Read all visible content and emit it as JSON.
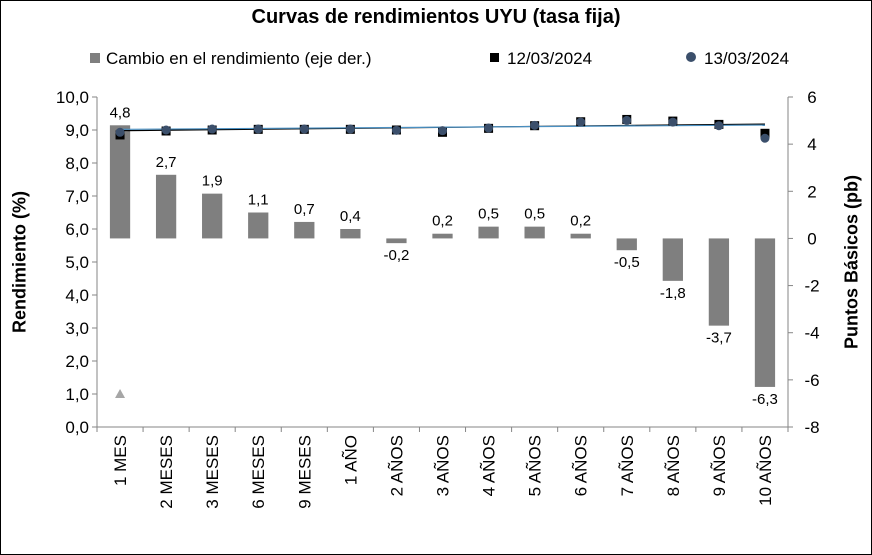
{
  "chart_data": {
    "type": "bar",
    "title": "Curvas de rendimientos UYU (tasa fija)",
    "ylabel": "Rendimiento (%)",
    "y2label": "Puntos Básicos (pb)",
    "ylim": [
      0,
      10
    ],
    "y2lim": [
      -8,
      6
    ],
    "yticks": [
      "0,0",
      "1,0",
      "2,0",
      "3,0",
      "4,0",
      "5,0",
      "6,0",
      "7,0",
      "8,0",
      "9,0",
      "10,0"
    ],
    "y2ticks": [
      "-8",
      "-6",
      "-4",
      "-2",
      "0",
      "2",
      "4",
      "6"
    ],
    "categories": [
      "1 MES",
      "2 MESES",
      "3 MESES",
      "6 MESES",
      "9 MESES",
      "1 AÑO",
      "2 AÑOS",
      "3 AÑOS",
      "4 AÑOS",
      "5 AÑOS",
      "6 AÑOS",
      "7 AÑOS",
      "8 AÑOS",
      "9 AÑOS",
      "10 AÑOS"
    ],
    "series": [
      {
        "name": "Cambio en el rendimiento (eje der.)",
        "type": "bar",
        "axis": "right",
        "color": "#7f7f7f",
        "values": [
          4.8,
          2.7,
          1.9,
          1.1,
          0.7,
          0.4,
          -0.2,
          0.2,
          0.5,
          0.5,
          0.2,
          -0.5,
          -1.8,
          -3.7,
          -6.3
        ],
        "labels": [
          "4,8",
          "2,7",
          "1,9",
          "1,1",
          "0,7",
          "0,4",
          "-0,2",
          "0,2",
          "0,5",
          "0,5",
          "0,2",
          "-0,5",
          "-1,8",
          "-3,7",
          "-6,3"
        ]
      },
      {
        "name": "12/03/2024",
        "type": "scatter",
        "axis": "left",
        "marker": "square",
        "color": "#000000",
        "values": [
          8.85,
          8.97,
          9.0,
          9.02,
          9.02,
          9.02,
          9.0,
          8.93,
          9.05,
          9.13,
          9.25,
          9.32,
          9.27,
          9.17,
          8.9
        ]
      },
      {
        "name": "13/03/2024",
        "type": "scatter",
        "axis": "left",
        "marker": "circle",
        "color": "#3b4f6b",
        "values": [
          8.93,
          9.0,
          9.03,
          9.03,
          9.03,
          9.03,
          8.99,
          8.98,
          9.06,
          9.14,
          9.24,
          9.29,
          9.24,
          9.13,
          8.75
        ]
      }
    ],
    "trendlines": [
      {
        "series": "12/03/2024",
        "color": "#000000",
        "start": 8.98,
        "end": 9.18
      },
      {
        "series": "13/03/2024",
        "color": "#4a90c2",
        "start": 9.02,
        "end": 9.15
      }
    ],
    "annotation_marker": {
      "category": "1 MES",
      "value": 1.0,
      "shape": "triangle",
      "color": "#a6a6a6"
    },
    "grid": false,
    "legend_position": "top"
  }
}
